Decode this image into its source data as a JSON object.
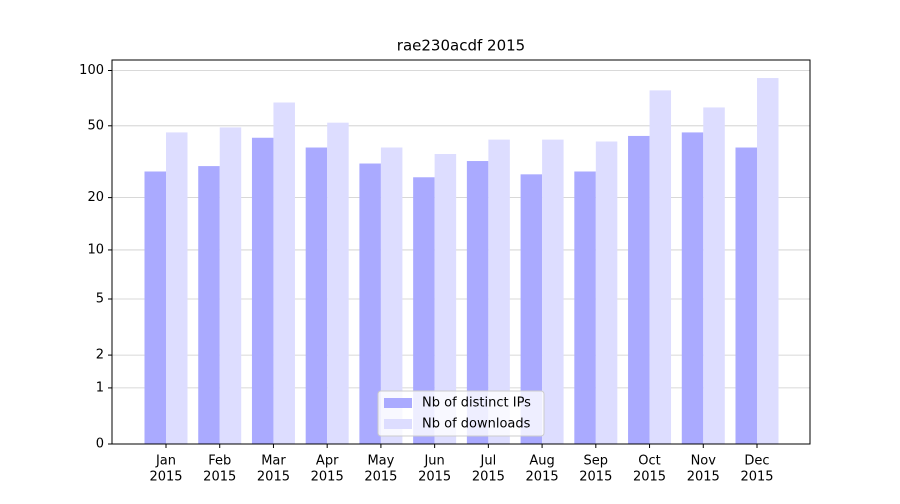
{
  "chart_data": {
    "type": "bar",
    "title": "rae230acdf 2015",
    "categories": [
      [
        "Jan",
        "2015"
      ],
      [
        "Feb",
        "2015"
      ],
      [
        "Mar",
        "2015"
      ],
      [
        "Apr",
        "2015"
      ],
      [
        "May",
        "2015"
      ],
      [
        "Jun",
        "2015"
      ],
      [
        "Jul",
        "2015"
      ],
      [
        "Aug",
        "2015"
      ],
      [
        "Sep",
        "2015"
      ],
      [
        "Oct",
        "2015"
      ],
      [
        "Nov",
        "2015"
      ],
      [
        "Dec",
        "2015"
      ]
    ],
    "series": [
      {
        "name": "Nb of distinct IPs",
        "color": "#aaaaff",
        "values": [
          28,
          30,
          43,
          38,
          31,
          26,
          32,
          27,
          28,
          44,
          46,
          38
        ]
      },
      {
        "name": "Nb of downloads",
        "color": "#ddddff",
        "values": [
          46,
          49,
          67,
          52,
          38,
          35,
          42,
          42,
          41,
          78,
          63,
          91
        ]
      }
    ],
    "yscale": "log1p",
    "ylim": [
      0,
      114
    ],
    "yticks": [
      0,
      1,
      2,
      5,
      10,
      20,
      50,
      100
    ],
    "grid": true,
    "legend": "lower center"
  }
}
